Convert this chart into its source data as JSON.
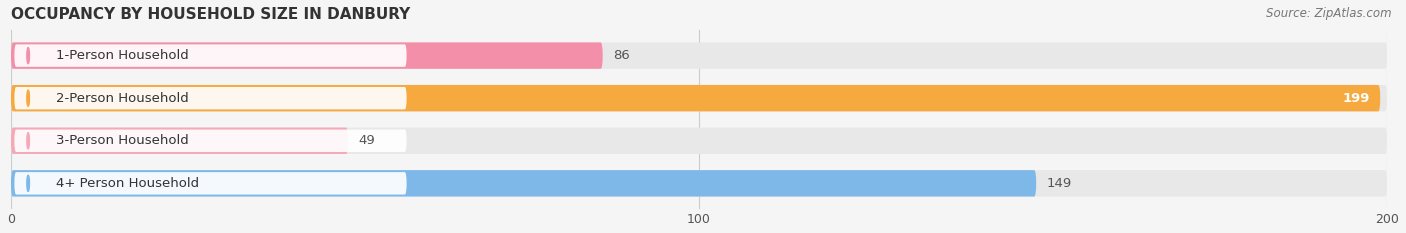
{
  "title": "OCCUPANCY BY HOUSEHOLD SIZE IN DANBURY",
  "source": "Source: ZipAtlas.com",
  "categories": [
    "1-Person Household",
    "2-Person Household",
    "3-Person Household",
    "4+ Person Household"
  ],
  "values": [
    86,
    199,
    49,
    149
  ],
  "bar_colors": [
    "#f48faa",
    "#f5a93e",
    "#f4a8b8",
    "#7db8e8"
  ],
  "dot_colors": [
    "#f48faa",
    "#f5a93e",
    "#f4a8b8",
    "#7db8e8"
  ],
  "value_text_colors": [
    "#555555",
    "#ffffff",
    "#555555",
    "#ffffff"
  ],
  "xlim_max": 200,
  "xticks": [
    0,
    100,
    200
  ],
  "background_color": "#f5f5f5",
  "bar_bg_color": "#e8e8e8",
  "title_fontsize": 11,
  "source_fontsize": 8.5,
  "label_fontsize": 9.5,
  "value_fontsize": 9.5,
  "bar_height": 0.62,
  "bar_rounding": 0.31
}
